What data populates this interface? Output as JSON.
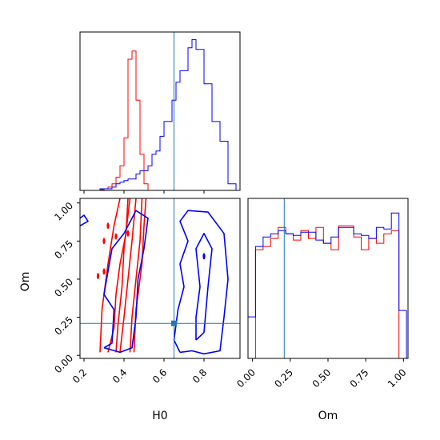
{
  "chart_data": {
    "type": "corner",
    "parameters": [
      "H0",
      "Om"
    ],
    "truth": {
      "H0": 0.65,
      "Om": 0.21
    },
    "colors": {
      "series_a": "#ff0000",
      "series_b": "#0000ff",
      "truth": "#1f77b4"
    },
    "panels": [
      {
        "id": "h0-marginal",
        "type": "histogram",
        "xlim": [
          0.18,
          0.98
        ],
        "bin_edges": [
          0.18,
          0.2,
          0.22,
          0.24,
          0.26,
          0.28,
          0.3,
          0.32,
          0.34,
          0.36,
          0.38,
          0.4,
          0.42,
          0.44,
          0.46,
          0.48,
          0.5,
          0.52,
          0.54,
          0.56,
          0.58,
          0.6,
          0.62,
          0.64,
          0.66,
          0.68,
          0.7,
          0.72,
          0.74,
          0.76,
          0.78,
          0.8,
          0.82,
          0.84,
          0.86,
          0.88,
          0.9,
          0.92,
          0.94,
          0.96,
          0.98
        ],
        "series": [
          {
            "color_key": "series_a",
            "counts": [
              0,
              0,
              0,
              0,
              0,
              0.5,
              1,
              2,
              4,
              8,
              15,
              32,
              80,
              85,
              55,
              22,
              4,
              0,
              0,
              0,
              0,
              0,
              0,
              0,
              0,
              0,
              0,
              0,
              0,
              0,
              0,
              0,
              0,
              0,
              0,
              0,
              0,
              0,
              0,
              0
            ]
          },
          {
            "color_key": "series_b",
            "counts": [
              0,
              0,
              0,
              0,
              0,
              1,
              1,
              1,
              2,
              4,
              5,
              6,
              7,
              7,
              10,
              12,
              12,
              15,
              22,
              24,
              33,
              42,
              42,
              55,
              66,
              73,
              73,
              87,
              92,
              86,
              86,
              65,
              65,
              42,
              42,
              30,
              30,
              4,
              4,
              0
            ]
          }
        ]
      },
      {
        "id": "om-vs-h0-contours",
        "type": "contour",
        "xlim": [
          0.18,
          0.98
        ],
        "ylim": [
          -0.02,
          1.03
        ],
        "series": [
          {
            "color_key": "series_a",
            "contours": [
              [
                [
                  0.32,
                  0.02
                ],
                [
                  0.35,
                  0.18
                ],
                [
                  0.36,
                  0.4
                ],
                [
                  0.38,
                  0.6
                ],
                [
                  0.41,
                  0.8
                ],
                [
                  0.42,
                  1.03
                ]
              ],
              [
                [
                  0.38,
                  0.02
                ],
                [
                  0.4,
                  0.25
                ],
                [
                  0.42,
                  0.5
                ],
                [
                  0.44,
                  0.75
                ],
                [
                  0.46,
                  1.03
                ]
              ],
              [
                [
                  0.43,
                  0.02
                ],
                [
                  0.44,
                  0.25
                ],
                [
                  0.46,
                  0.5
                ],
                [
                  0.48,
                  0.75
                ],
                [
                  0.49,
                  1.03
                ]
              ],
              [
                [
                  0.36,
                  0.02
                ],
                [
                  0.37,
                  0.2
                ],
                [
                  0.39,
                  0.45
                ],
                [
                  0.4,
                  0.7
                ],
                [
                  0.43,
                  1.03
                ]
              ],
              [
                [
                  0.28,
                  0.02
                ],
                [
                  0.29,
                  0.3
                ],
                [
                  0.32,
                  0.6
                ],
                [
                  0.35,
                  0.85
                ],
                [
                  0.38,
                  1.03
                ]
              ],
              [
                [
                  0.45,
                  0.02
                ],
                [
                  0.46,
                  0.3
                ],
                [
                  0.49,
                  0.6
                ],
                [
                  0.5,
                  0.85
                ],
                [
                  0.51,
                  1.03
                ]
              ]
            ],
            "blobs": [
              [
                0.3,
                0.75
              ],
              [
                0.3,
                0.55
              ],
              [
                0.27,
                0.52
              ],
              [
                0.36,
                0.78
              ],
              [
                0.42,
                0.8
              ],
              [
                0.32,
                0.85
              ]
            ]
          },
          {
            "color_key": "series_b",
            "contours": [
              [
                [
                  0.18,
                  0.85
                ],
                [
                  0.22,
                  0.88
                ],
                [
                  0.2,
                  0.92
                ],
                [
                  0.18,
                  0.9
                ]
              ],
              [
                [
                  0.3,
                  0.05
                ],
                [
                  0.34,
                  0.08
                ],
                [
                  0.35,
                  0.3
                ],
                [
                  0.3,
                  0.4
                ],
                [
                  0.32,
                  0.55
                ],
                [
                  0.34,
                  0.7
                ],
                [
                  0.4,
                  0.8
                ],
                [
                  0.46,
                  0.95
                ],
                [
                  0.52,
                  0.9
                ],
                [
                  0.5,
                  0.7
                ],
                [
                  0.47,
                  0.5
                ],
                [
                  0.46,
                  0.25
                ],
                [
                  0.44,
                  0.05
                ],
                [
                  0.38,
                  0.02
                ],
                [
                  0.3,
                  0.05
                ]
              ],
              [
                [
                  0.68,
                  0.02
                ],
                [
                  0.74,
                  0.03
                ],
                [
                  0.8,
                  0.01
                ],
                [
                  0.88,
                  0.03
                ],
                [
                  0.9,
                  0.25
                ],
                [
                  0.92,
                  0.5
                ],
                [
                  0.9,
                  0.8
                ],
                [
                  0.82,
                  0.94
                ],
                [
                  0.72,
                  0.95
                ],
                [
                  0.68,
                  0.88
                ],
                [
                  0.72,
                  0.75
                ],
                [
                  0.68,
                  0.6
                ],
                [
                  0.7,
                  0.45
                ],
                [
                  0.67,
                  0.3
                ],
                [
                  0.65,
                  0.1
                ],
                [
                  0.68,
                  0.02
                ]
              ],
              [
                [
                  0.76,
                  0.1
                ],
                [
                  0.8,
                  0.15
                ],
                [
                  0.82,
                  0.45
                ],
                [
                  0.84,
                  0.7
                ],
                [
                  0.8,
                  0.8
                ],
                [
                  0.76,
                  0.7
                ],
                [
                  0.78,
                  0.45
                ],
                [
                  0.76,
                  0.25
                ],
                [
                  0.76,
                  0.1
                ]
              ]
            ],
            "blobs": [
              [
                0.8,
                0.65
              ]
            ]
          }
        ]
      },
      {
        "id": "om-marginal",
        "type": "histogram",
        "xlim": [
          -0.03,
          1.03
        ],
        "bin_edges": [
          -0.03,
          0.02,
          0.07,
          0.12,
          0.17,
          0.22,
          0.27,
          0.32,
          0.37,
          0.42,
          0.47,
          0.52,
          0.57,
          0.62,
          0.67,
          0.72,
          0.77,
          0.82,
          0.87,
          0.92,
          0.97,
          1.02
        ],
        "series": [
          {
            "color_key": "series_a",
            "counts": [
              0.0,
              0.68,
              0.7,
              0.75,
              0.82,
              0.78,
              0.74,
              0.8,
              0.75,
              0.82,
              0.72,
              0.68,
              0.83,
              0.83,
              0.76,
              0.68,
              0.75,
              0.72,
              0.78,
              0.8,
              0.0
            ]
          },
          {
            "color_key": "series_b",
            "counts": [
              0.26,
              0.7,
              0.76,
              0.78,
              0.8,
              0.78,
              0.77,
              0.79,
              0.79,
              0.74,
              0.72,
              0.76,
              0.82,
              0.82,
              0.78,
              0.77,
              0.75,
              0.82,
              0.81,
              0.91,
              0.3
            ]
          }
        ]
      }
    ],
    "axes": {
      "H0": {
        "label": "H0",
        "ticks": [
          0.2,
          0.4,
          0.6,
          0.8
        ],
        "tick_labels": [
          "0.2",
          "0.4",
          "0.6",
          "0.8"
        ]
      },
      "Om": {
        "label": "Om",
        "ticks": [
          0.0,
          0.25,
          0.5,
          0.75,
          1.0
        ],
        "tick_labels": [
          "0.00",
          "0.25",
          "0.50",
          "0.75",
          "1.00"
        ]
      }
    },
    "grid": false
  }
}
